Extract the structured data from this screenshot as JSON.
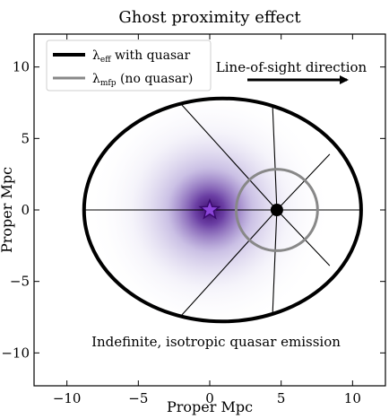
{
  "chart_data": {
    "type": "diagram",
    "title": "Ghost proximity effect",
    "xlabel": "Proper Mpc",
    "ylabel": "Proper Mpc",
    "xlim": [
      -12.3,
      12.3
    ],
    "ylim": [
      -12.3,
      12.3
    ],
    "xticks": [
      -10,
      -5,
      0,
      5,
      10
    ],
    "yticks": [
      -10,
      -5,
      0,
      5,
      10
    ],
    "xtick_labels": [
      "−10",
      "−5",
      "0",
      "5",
      "10"
    ],
    "ytick_labels": [
      "−10",
      "−5",
      "0",
      "5",
      "10"
    ],
    "legend_placement": "top-left",
    "legend": [
      {
        "name": "λeff with quasar",
        "label_main": "λ",
        "label_sub": "eff",
        "label_rest": " with quasar",
        "color": "#000000"
      },
      {
        "name": "λmfp (no quasar)",
        "label_main": "λ",
        "label_sub": "mfp",
        "label_rest": " (no quasar)",
        "color": "#888888"
      }
    ],
    "annotations": {
      "direction_text": "Line-of-sight direction",
      "bottom_text": "Indefinite, isotropic quasar emission"
    },
    "quasar": {
      "x": 0,
      "y": 0,
      "color": "#7b2fbf",
      "marker": "star"
    },
    "absorber": {
      "x": 4.7,
      "y": 0,
      "marker": "dot",
      "color": "#000000"
    },
    "effective_ellipse": {
      "center_x": 0.9,
      "center_y": 0,
      "semi_x": 9.7,
      "semi_y": 7.8,
      "color": "#000000"
    },
    "mfp_circle": {
      "center_x": 4.7,
      "center_y": 0,
      "radius": 2.85,
      "color": "#888888"
    },
    "ray_endpoints": [
      [
        -8.8,
        0
      ],
      [
        -2.0,
        7.4
      ],
      [
        4.4,
        7.3
      ],
      [
        8.4,
        3.9
      ],
      [
        10.6,
        0
      ],
      [
        8.4,
        -3.9
      ],
      [
        4.4,
        -7.3
      ],
      [
        -2.0,
        -7.4
      ]
    ],
    "glow": {
      "center_x": 0,
      "center_y": 0,
      "radius": 8.5,
      "color": "#5b2a9a"
    }
  }
}
